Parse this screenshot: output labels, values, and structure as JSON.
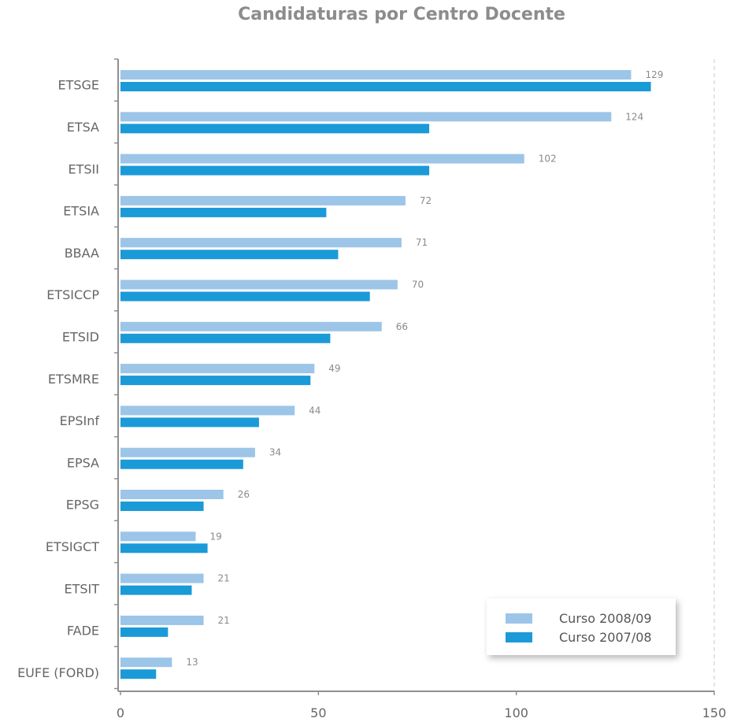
{
  "chart_data": {
    "type": "bar",
    "orientation": "horizontal",
    "title": "Candidaturas por Centro Docente",
    "categories": [
      "ETSGE",
      "ETSA",
      "ETSII",
      "ETSIA",
      "BBAA",
      "ETSICCP",
      "ETSID",
      "ETSMRE",
      "EPSInf",
      "EPSA",
      "EPSG",
      "ETSIGCT",
      "ETSIT",
      "FADE",
      "EUFE (FORD)"
    ],
    "series": [
      {
        "name": "Curso 2008/09",
        "color": "#9cc5e8",
        "values": [
          129,
          124,
          102,
          72,
          71,
          70,
          66,
          49,
          44,
          34,
          26,
          19,
          21,
          21,
          13
        ],
        "labeled": true
      },
      {
        "name": "Curso 2007/08",
        "color": "#1b9ad8",
        "values": [
          134,
          78,
          78,
          52,
          55,
          63,
          53,
          48,
          35,
          31,
          21,
          22,
          18,
          12,
          9
        ],
        "labeled": false
      }
    ],
    "xlim": [
      0,
      150
    ],
    "xticks": [
      0,
      50,
      100,
      150
    ],
    "grid": "dashed line at 150",
    "legend_position": "bottom-right",
    "xlabel": "",
    "ylabel": ""
  }
}
